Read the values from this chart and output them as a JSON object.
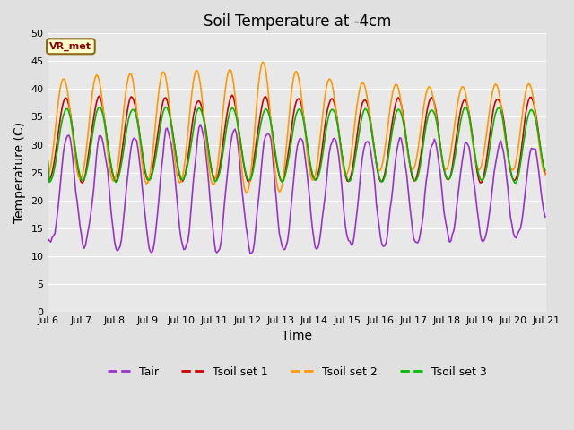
{
  "title": "Soil Temperature at -4cm",
  "xlabel": "Time",
  "ylabel": "Temperature (C)",
  "ylim": [
    0,
    50
  ],
  "yticks": [
    0,
    5,
    10,
    15,
    20,
    25,
    30,
    35,
    40,
    45,
    50
  ],
  "start_day": 6,
  "end_day": 21,
  "colors": {
    "Tair": "#9933CC",
    "Tsoil1": "#CC0000",
    "Tsoil2": "#FF9900",
    "Tsoil3": "#00BB00"
  },
  "annotation_text": "VR_met",
  "bg_color": "#E0E0E0",
  "plot_bg_color": "#E8E8E8",
  "line_width": 1.2,
  "title_fontsize": 12,
  "label_fontsize": 10,
  "tick_fontsize": 8
}
